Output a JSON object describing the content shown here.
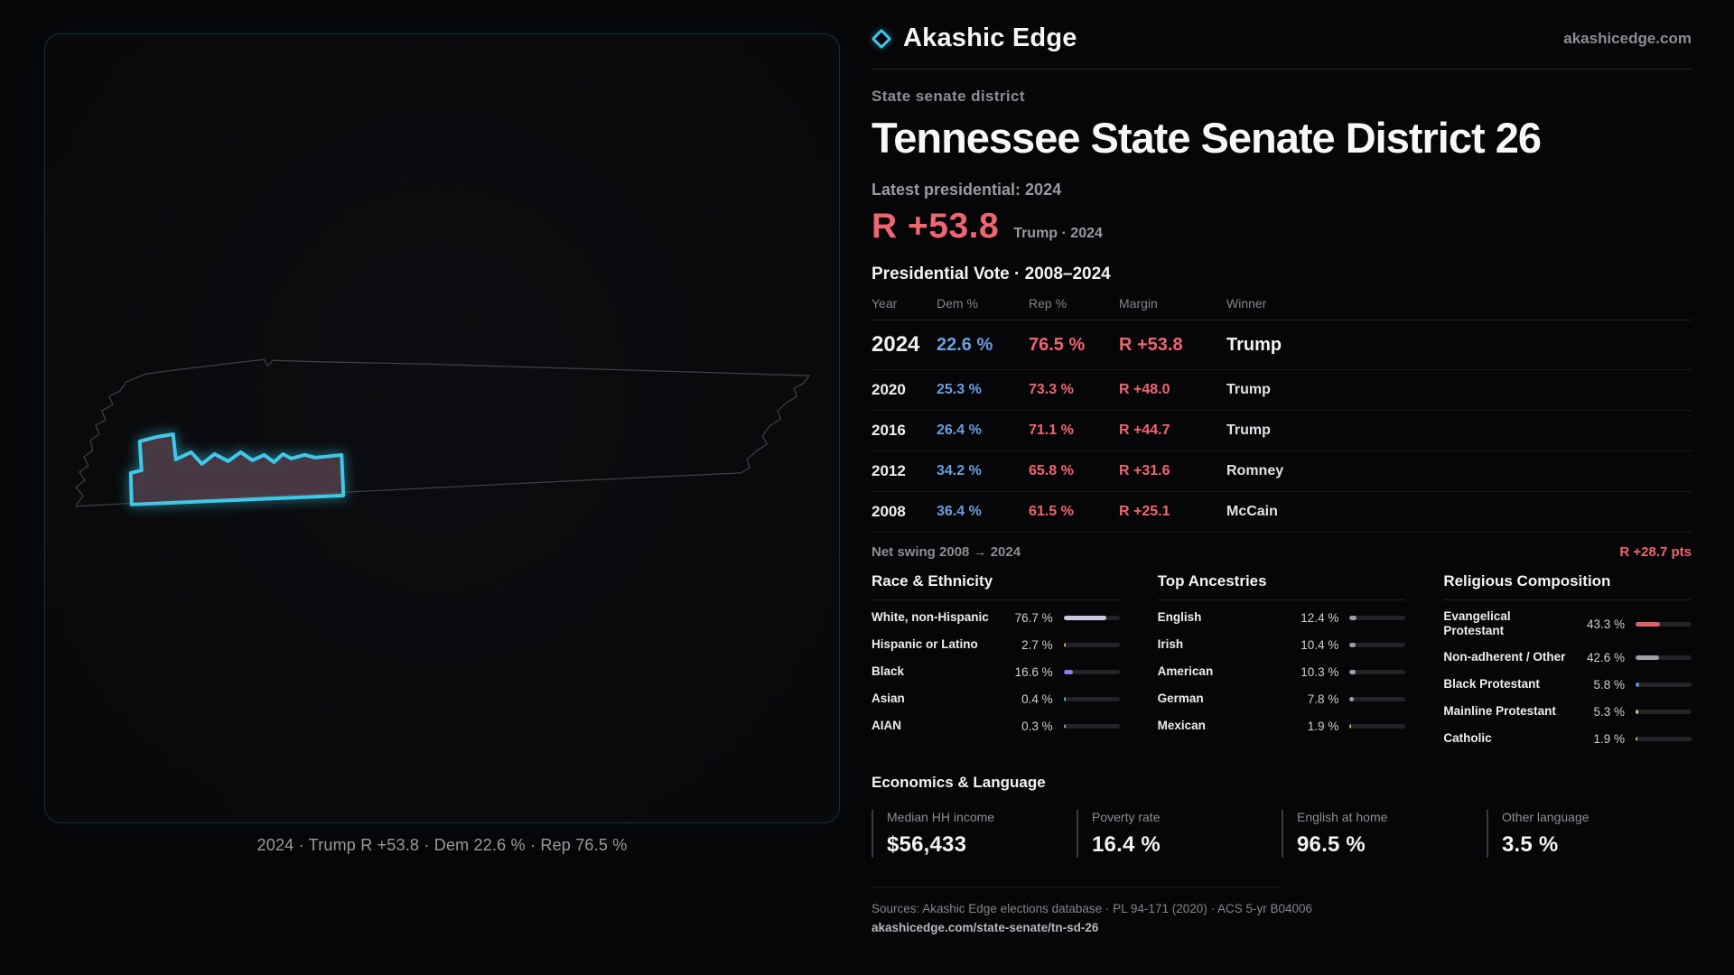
{
  "brand": {
    "name": "Akashic Edge",
    "domain": "akashicedge.com"
  },
  "header": {
    "kicker": "State senate district",
    "title": "Tennessee State Senate District 26"
  },
  "headline": {
    "label": "Latest presidential: 2024",
    "margin": "R +53.8",
    "sub": "Trump · 2024"
  },
  "map": {
    "caption": "2024 · Trump R +53.8 · Dem 22.6 % · Rep 76.5 %"
  },
  "results": {
    "title": "Presidential Vote · 2008–2024",
    "columns": [
      "Year",
      "Dem %",
      "Rep %",
      "Margin",
      "Winner"
    ],
    "rows": [
      {
        "year": "2024",
        "dem": "22.6 %",
        "rep": "76.5 %",
        "margin": "R +53.8",
        "winner": "Trump"
      },
      {
        "year": "2020",
        "dem": "25.3 %",
        "rep": "73.3 %",
        "margin": "R +48.0",
        "winner": "Trump"
      },
      {
        "year": "2016",
        "dem": "26.4 %",
        "rep": "71.1 %",
        "margin": "R +44.7",
        "winner": "Trump"
      },
      {
        "year": "2012",
        "dem": "34.2 %",
        "rep": "65.8 %",
        "margin": "R +31.6",
        "winner": "Romney"
      },
      {
        "year": "2008",
        "dem": "36.4 %",
        "rep": "61.5 %",
        "margin": "R +25.1",
        "winner": "McCain"
      }
    ],
    "swing_label": "Net swing 2008 → 2024",
    "swing_value": "R +28.7 pts"
  },
  "demographics": {
    "race": {
      "title": "Race & Ethnicity",
      "items": [
        {
          "label": "White, non-Hispanic",
          "value": "76.7 %",
          "pct": 76.7,
          "color": "#c9cbdd"
        },
        {
          "label": "Hispanic or Latino",
          "value": "2.7 %",
          "pct": 2.7,
          "color": "#e2a63d"
        },
        {
          "label": "Black",
          "value": "16.6 %",
          "pct": 16.6,
          "color": "#8f7bf0"
        },
        {
          "label": "Asian",
          "value": "0.4 %",
          "pct": 0.4,
          "color": "#5bc0c0"
        },
        {
          "label": "AIAN",
          "value": "0.3 %",
          "pct": 0.3,
          "color": "#9aa0a6"
        }
      ]
    },
    "ancestries": {
      "title": "Top Ancestries",
      "items": [
        {
          "label": "English",
          "value": "12.4 %",
          "pct": 12.4,
          "color": "#9ba0a8"
        },
        {
          "label": "Irish",
          "value": "10.4 %",
          "pct": 10.4,
          "color": "#9ba0a8"
        },
        {
          "label": "American",
          "value": "10.3 %",
          "pct": 10.3,
          "color": "#9ba0a8"
        },
        {
          "label": "German",
          "value": "7.8 %",
          "pct": 7.8,
          "color": "#9ba0a8"
        },
        {
          "label": "Mexican",
          "value": "1.9 %",
          "pct": 1.9,
          "color": "#d8b44a"
        }
      ]
    },
    "religion": {
      "title": "Religious Composition",
      "items": [
        {
          "label": "Evangelical Protestant",
          "value": "43.3 %",
          "pct": 43.3,
          "color": "#e0606a"
        },
        {
          "label": "Non-adherent / Other",
          "value": "42.6 %",
          "pct": 42.6,
          "color": "#9ba0a8"
        },
        {
          "label": "Black Protestant",
          "value": "5.8 %",
          "pct": 5.8,
          "color": "#5b8fd9"
        },
        {
          "label": "Mainline Protestant",
          "value": "5.3 %",
          "pct": 5.3,
          "color": "#e3c94e"
        },
        {
          "label": "Catholic",
          "value": "1.9 %",
          "pct": 1.9,
          "color": "#a8c75a"
        }
      ]
    }
  },
  "economics": {
    "title": "Economics & Language",
    "stats": [
      {
        "label": "Median HH income",
        "value": "$56,433"
      },
      {
        "label": "Poverty rate",
        "value": "16.4 %"
      },
      {
        "label": "English at home",
        "value": "96.5 %"
      },
      {
        "label": "Other language",
        "value": "3.5 %"
      }
    ]
  },
  "footer": {
    "sources": "Sources: Akashic Edge elections database · PL 94-171 (2020) · ACS 5-yr B04006",
    "permalink": "akashicedge.com/state-senate/tn-sd-26"
  }
}
